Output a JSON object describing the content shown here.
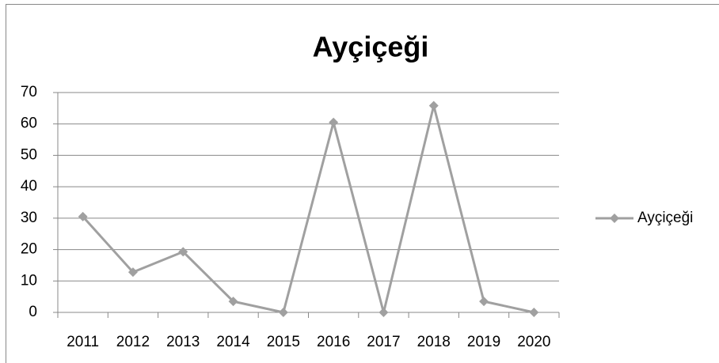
{
  "chart_data": {
    "type": "line",
    "title": "Ayçiçeği",
    "categories": [
      "2011",
      "2012",
      "2013",
      "2014",
      "2015",
      "2016",
      "2017",
      "2018",
      "2019",
      "2020"
    ],
    "series": [
      {
        "name": "Ayçiçeği",
        "color": "#a0a0a0",
        "values": [
          30.5,
          12.8,
          19.3,
          3.5,
          0,
          60.5,
          0,
          65.8,
          3.5,
          0
        ]
      }
    ],
    "ylim": [
      0,
      70
    ],
    "yticks": [
      0,
      10,
      20,
      30,
      40,
      50,
      60,
      70
    ],
    "grid": true,
    "legend": "right"
  }
}
